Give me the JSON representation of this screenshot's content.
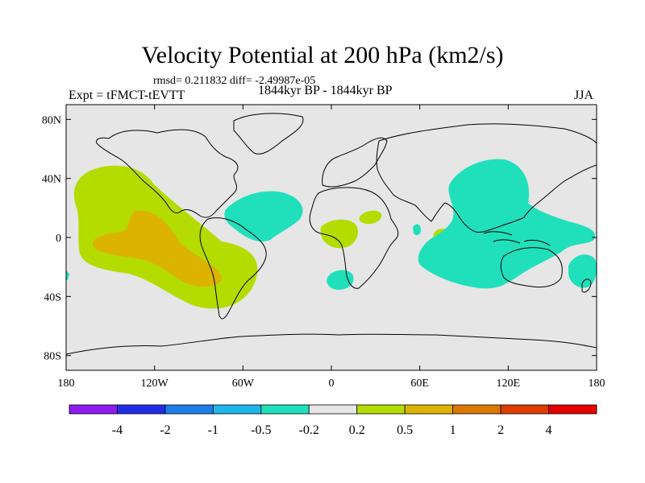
{
  "title": "Velocity Potential at 200 hPa (km2/s)",
  "stats": "rmsd= 0.211832 diff= -2.49987e-05",
  "expt": "Expt = tFMCT-tEVTT",
  "period": "1844kyr BP - 1844kyr BP",
  "season": "JJA",
  "map_data": {
    "lat_ticks": [
      {
        "lat": 80,
        "label": "80N"
      },
      {
        "lat": 40,
        "label": "40N"
      },
      {
        "lat": 0,
        "label": "0"
      },
      {
        "lat": -40,
        "label": "40S"
      },
      {
        "lat": -80,
        "label": "80S"
      }
    ],
    "lon_ticks": [
      {
        "lon": -180,
        "label": "180"
      },
      {
        "lon": -120,
        "label": "120W"
      },
      {
        "lon": -60,
        "label": "60W"
      },
      {
        "lon": 0,
        "label": "0"
      },
      {
        "lon": 60,
        "label": "60E"
      },
      {
        "lon": 120,
        "label": "120E"
      },
      {
        "lon": 180,
        "label": "180"
      }
    ],
    "lat_range": [
      -90,
      90
    ],
    "lon_range": [
      -180,
      180
    ]
  },
  "colorbar": {
    "colors": [
      "#8c1cf0",
      "#1e2ee6",
      "#1c7ee8",
      "#1eb6ea",
      "#20e0bc",
      "#e6e6e6",
      "#b4dc00",
      "#dcb400",
      "#dc7800",
      "#dc3c00",
      "#e60000"
    ],
    "labels": [
      "-4",
      "-2",
      "-1",
      "-0.5",
      "-0.2",
      "0.2",
      "0.5",
      "1",
      "2",
      "4"
    ]
  }
}
